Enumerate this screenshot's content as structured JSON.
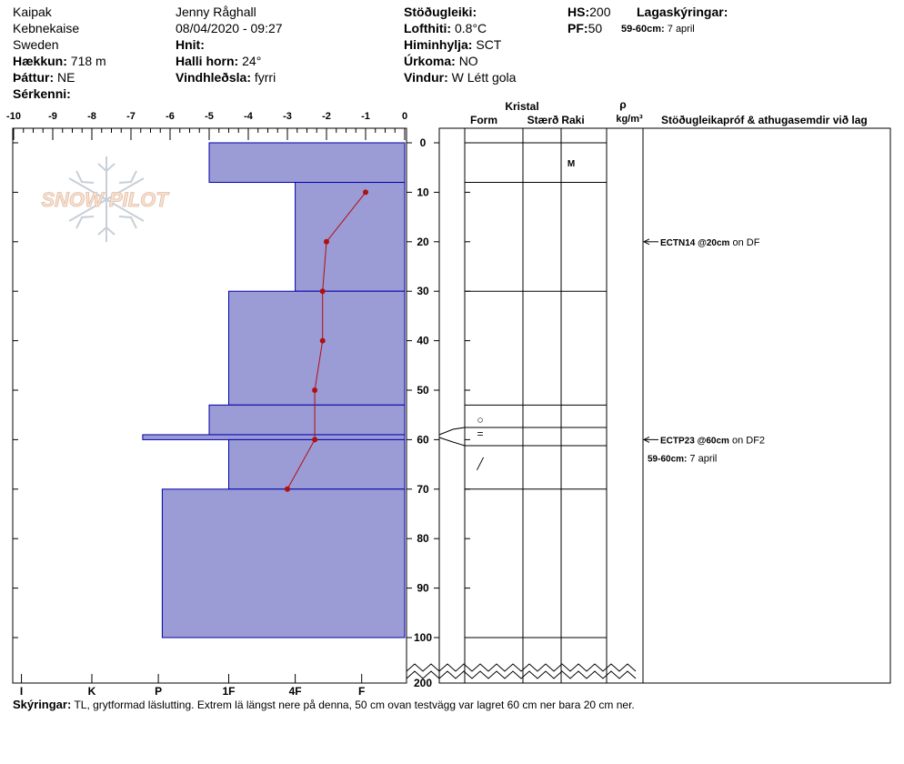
{
  "header": {
    "location": "Kaipak",
    "region": "Kebnekaise",
    "country": "Sweden",
    "elevation_label": "Hækkun:",
    "elevation_value": "718 m",
    "aspect_label": "Þáttur:",
    "aspect_value": "NE",
    "features_label": "Sérkenni:",
    "observer": "Jenny Råghall",
    "datetime": "08/04/2020 - 09:27",
    "coords_label": "Hnit:",
    "slope_label": "Halli horn:",
    "slope_value": "24°",
    "wind_loading_label": "Vindhleðsla:",
    "wind_loading_value": "fyrri",
    "stability_label": "Stöðugleiki:",
    "air_temp_label": "Lofthiti:",
    "air_temp_value": "0.8°C",
    "sky_label": "Himinhylja:",
    "sky_value": "SCT",
    "precip_label": "Úrkoma:",
    "precip_value": "NO",
    "wind_label": "Vindur:",
    "wind_value": "W Létt gola",
    "hs_label": "HS:",
    "hs_value": "200",
    "pf_label": "PF:",
    "pf_value": "50",
    "layer_notes_label": "Lagaskýringar:",
    "layer_note_depth": "59-60cm:",
    "layer_note_text": "7 april"
  },
  "logo_text": "SNOW PILOT",
  "columns": {
    "crystal": "Kristal",
    "form": "Form",
    "size": "Stærð",
    "moisture": "Raki",
    "rho": "ρ",
    "density_unit": "kg/m³",
    "comments": "Stöðugleikapróf & athugasemdir við lag"
  },
  "remarks_label": "Skýringar:",
  "remarks_text": "TL, grytformad läslutting. Extrem lä längst nere på denna, 50 cm ovan testvägg var lagret 60 cm ner bara 20 cm ner.",
  "stability_tests": [
    {
      "depth": 20,
      "label": "ECTN14 @20cm",
      "suffix": "on DF"
    },
    {
      "depth": 60,
      "label": "ECTP23 @60cm",
      "suffix": "on DF2",
      "note_depth": "59-60cm:",
      "note_text": "7 april"
    }
  ],
  "colors": {
    "hardness_fill": "#9b9bd6",
    "hardness_stroke": "#0000aa",
    "temperature": "#b01010"
  },
  "chart_data": {
    "type": "snow-profile",
    "temperature_axis": {
      "ticks": [
        -10,
        -9,
        -8,
        -7,
        -6,
        -5,
        -4,
        -3,
        -2,
        -1,
        0
      ],
      "labels": [
        "-10",
        "-9",
        "-8",
        "-7",
        "-6",
        "-5",
        "-4",
        "-3",
        "-2",
        "-1",
        "0"
      ]
    },
    "hardness_axis": {
      "labels": [
        "I",
        "K",
        "P",
        "1F",
        "4F",
        "F"
      ],
      "positions_in_temp_units": [
        -9.8,
        -8.0,
        -6.3,
        -4.5,
        -2.8,
        -1.1
      ]
    },
    "depth_axis": {
      "ticks": [
        0,
        10,
        20,
        30,
        40,
        50,
        60,
        70,
        80,
        90,
        100
      ],
      "break_label": "200"
    },
    "layers": [
      {
        "top": 0,
        "bottom": 8,
        "hardness": -5.0,
        "form": "",
        "moisture": "M"
      },
      {
        "top": 8,
        "bottom": 30,
        "hardness": -2.8
      },
      {
        "top": 30,
        "bottom": 53,
        "hardness": -4.5
      },
      {
        "top": 53,
        "bottom": 59,
        "hardness": -5.0,
        "form": "○"
      },
      {
        "top": 59,
        "bottom": 60,
        "hardness": -6.7,
        "form": "="
      },
      {
        "top": 60,
        "bottom": 70,
        "hardness": -4.5,
        "form": "╱"
      },
      {
        "top": 70,
        "bottom": 100,
        "hardness": -6.2
      }
    ],
    "temperature_profile": [
      {
        "depth": 10,
        "temp": -1.0
      },
      {
        "depth": 20,
        "temp": -2.0
      },
      {
        "depth": 30,
        "temp": -2.1
      },
      {
        "depth": 40,
        "temp": -2.1
      },
      {
        "depth": 50,
        "temp": -2.3
      },
      {
        "depth": 60,
        "temp": -2.3
      },
      {
        "depth": 70,
        "temp": -3.0
      }
    ]
  }
}
